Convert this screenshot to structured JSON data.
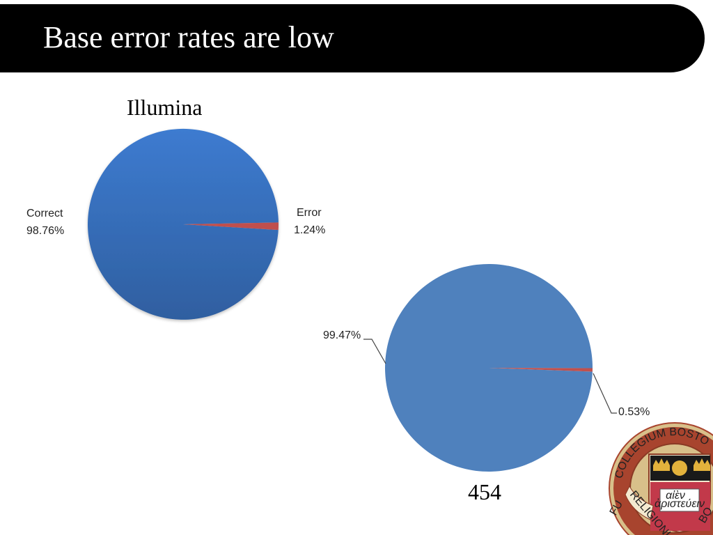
{
  "slide": {
    "title": "Base error rates are low"
  },
  "colors": {
    "title_bar": "#000000",
    "correct_illumina": "#3a74c1",
    "correct_454": "#4f81bd",
    "error": "#c0504d"
  },
  "chart_data": [
    {
      "type": "pie",
      "title": "Illumina",
      "slices": [
        {
          "label": "Correct",
          "value": 98.76,
          "value_label": "98.76%"
        },
        {
          "label": "Error",
          "value": 1.24,
          "value_label": "1.24%"
        }
      ]
    },
    {
      "type": "pie",
      "title": "454",
      "slices": [
        {
          "label": "",
          "value": 99.47,
          "value_label": "99.47%"
        },
        {
          "label": "",
          "value": 0.53,
          "value_label": "0.53%"
        }
      ]
    }
  ],
  "logo": {
    "text_top": "COLLEGIUM BOSTO",
    "text_left": "FU",
    "text_ribbon": "RELIGIONI ET",
    "text_ribbon_right": "BO",
    "text_book_line1": "αἰὲν",
    "text_book_line2": "ἀριστεύειν"
  }
}
